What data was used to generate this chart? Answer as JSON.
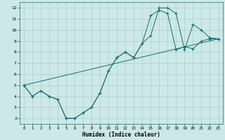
{
  "title": "",
  "xlabel": "Humidex (Indice chaleur)",
  "background_color": "#cce8e8",
  "grid_color": "#b0cccc",
  "line_color": "#1a6b6b",
  "xlim": [
    -0.5,
    23.5
  ],
  "ylim": [
    1.5,
    12.5
  ],
  "xticks": [
    0,
    1,
    2,
    3,
    4,
    5,
    6,
    7,
    8,
    9,
    10,
    11,
    12,
    13,
    14,
    15,
    16,
    17,
    18,
    19,
    20,
    21,
    22,
    23
  ],
  "yticks": [
    2,
    3,
    4,
    5,
    6,
    7,
    8,
    9,
    10,
    11,
    12
  ],
  "line1_x": [
    0,
    1,
    2,
    3,
    4,
    5,
    6,
    7,
    8,
    9,
    10,
    11,
    12,
    13,
    14,
    15,
    16,
    17,
    18,
    19,
    20,
    21,
    22,
    23
  ],
  "line1_y": [
    5,
    4,
    4.5,
    4,
    3.7,
    2.0,
    2.0,
    2.5,
    3.0,
    4.3,
    6.3,
    7.5,
    8.0,
    7.5,
    8.8,
    9.5,
    12.0,
    12.0,
    11.5,
    8.2,
    10.5,
    10.0,
    9.3,
    9.2
  ],
  "line2_x": [
    0,
    1,
    2,
    3,
    4,
    5,
    6,
    7,
    8,
    9,
    10,
    11,
    12,
    13,
    14,
    15,
    16,
    17,
    18,
    19,
    20,
    21,
    22,
    23
  ],
  "line2_y": [
    5,
    4,
    4.5,
    4,
    3.7,
    2.0,
    2.0,
    2.5,
    3.0,
    4.3,
    6.3,
    7.5,
    8.0,
    7.5,
    8.8,
    11.3,
    11.8,
    11.5,
    8.2,
    8.5,
    8.3,
    9.0,
    9.2,
    9.2
  ],
  "line3_x": [
    0,
    23
  ],
  "line3_y": [
    5.0,
    9.2
  ]
}
